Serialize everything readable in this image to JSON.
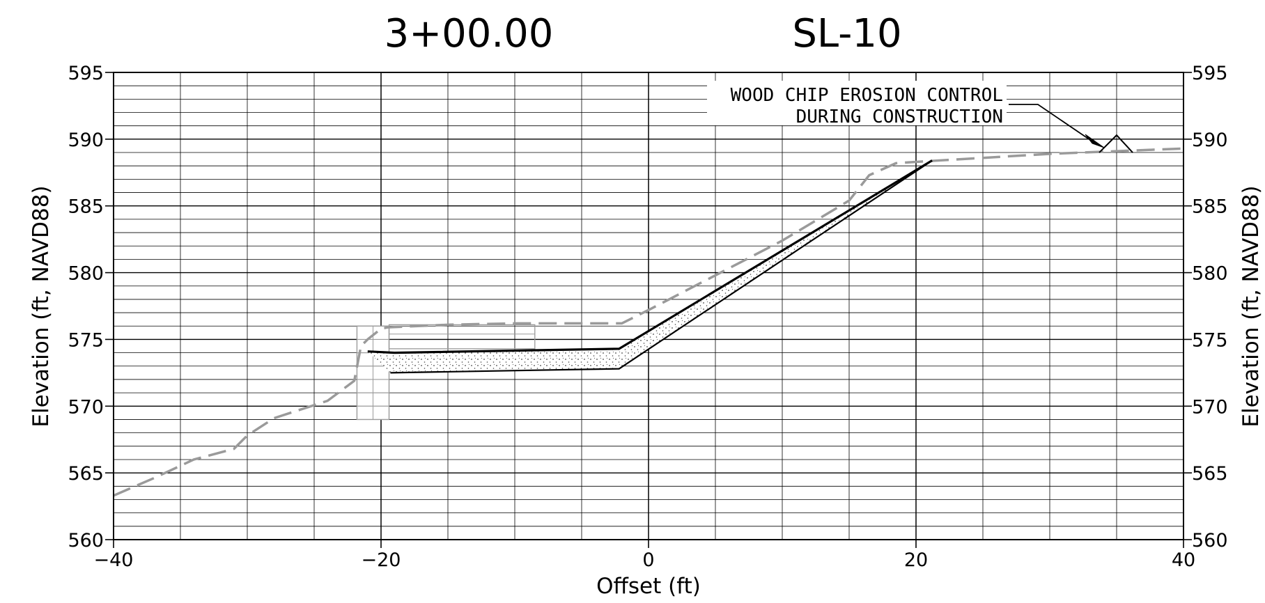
{
  "header": {
    "station": "3+00.00",
    "section_id": "SL-10"
  },
  "annotation": {
    "line1": "WOOD CHIP EROSION CONTROL",
    "line2": "DURING CONSTRUCTION"
  },
  "colors": {
    "grid": "#000000",
    "existing_ground": "#9a9a9a",
    "proposed": "#000000",
    "riprap_fill": "#555555"
  },
  "chart_data": {
    "type": "line",
    "xlabel": "Offset (ft)",
    "ylabel": "Elevation (ft, NAVD88)",
    "xlim": [
      -40,
      40
    ],
    "ylim": [
      560,
      595
    ],
    "x_ticks": [
      -40,
      -20,
      0,
      20,
      40
    ],
    "x_tick_labels": [
      "−40",
      "−20",
      "0",
      "20",
      "40"
    ],
    "y_ticks": [
      560,
      565,
      570,
      575,
      580,
      585,
      590,
      595
    ],
    "y_tick_labels": [
      "560",
      "565",
      "570",
      "575",
      "580",
      "585",
      "590",
      "595"
    ],
    "grid": true,
    "series": [
      {
        "style": "dashed-gray",
        "x": [
          -40,
          -37,
          -34,
          -31,
          -30,
          -28,
          -24,
          -22,
          -21.5,
          -21,
          -20,
          -19.5,
          -15,
          -10,
          -5,
          -2,
          0,
          5,
          10,
          15,
          16.5,
          18.5,
          20,
          25,
          30,
          35,
          40
        ],
        "y": [
          563.3,
          564.6,
          566,
          566.8,
          567.8,
          569.1,
          570.4,
          571.9,
          574.5,
          575,
          575.8,
          575.9,
          576.1,
          576.2,
          576.2,
          576.2,
          577.2,
          579.8,
          582.4,
          585.4,
          587.3,
          588.2,
          588.3,
          588.6,
          588.9,
          589.1,
          589.3
        ]
      },
      {
        "style": "solid-black-top",
        "x": [
          -21,
          -19,
          -2.2,
          21.2
        ],
        "y": [
          574.1,
          574,
          574.3,
          588.4
        ]
      },
      {
        "style": "solid-black-bottom",
        "x": [
          -19.3,
          -2.2,
          21.2
        ],
        "y": [
          572.5,
          572.8,
          588.4
        ]
      },
      {
        "style": "berm",
        "x": [
          33.7,
          35,
          36.2
        ],
        "y": [
          589,
          590.3,
          589
        ]
      }
    ]
  }
}
